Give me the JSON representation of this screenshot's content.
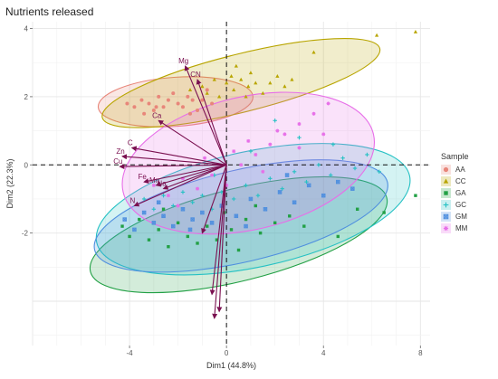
{
  "chart_data": {
    "type": "scatter",
    "title": "Nutrients released",
    "xlabel": "Dim1 (44.8%)",
    "ylabel": "Dim2 (22.3%)",
    "xlim": [
      -8,
      8.4
    ],
    "ylim": [
      -5.3,
      4.2
    ],
    "x_ticks": [
      -4,
      0,
      4,
      8
    ],
    "y_ticks": [
      -2,
      0,
      2,
      4
    ],
    "x_tick_labels": [
      "-4",
      "0",
      "4",
      "8"
    ],
    "y_tick_labels": [
      "-2",
      "0",
      "2",
      "4"
    ],
    "grid": true,
    "legend_position": "right",
    "legend_title": "Sample",
    "series": [
      {
        "name": "AA",
        "color": "#e8867a",
        "shape": "circle",
        "points": [
          [
            -4.1,
            1.8
          ],
          [
            -3.8,
            1.7
          ],
          [
            -3.5,
            1.9
          ],
          [
            -3.2,
            1.8
          ],
          [
            -3.0,
            1.6
          ],
          [
            -2.8,
            2.0
          ],
          [
            -2.6,
            1.7
          ],
          [
            -2.4,
            1.9
          ],
          [
            -2.2,
            2.1
          ],
          [
            -2.0,
            1.8
          ],
          [
            -1.8,
            1.7
          ],
          [
            -1.6,
            2.0
          ],
          [
            -1.4,
            1.9
          ],
          [
            -1.2,
            1.6
          ],
          [
            -1.0,
            1.9
          ],
          [
            -0.8,
            2.2
          ],
          [
            -0.6,
            1.8
          ],
          [
            -3.4,
            1.5
          ],
          [
            -2.9,
            1.7
          ],
          [
            -1.5,
            1.5
          ]
        ],
        "ellipse": {
          "cx": -2.1,
          "cy": 1.85,
          "rx": 3.2,
          "ry": 0.72,
          "angle": 4
        }
      },
      {
        "name": "CC",
        "color": "#b8a500",
        "shape": "triangle",
        "points": [
          [
            -1.5,
            2.2
          ],
          [
            -1.0,
            2.3
          ],
          [
            -0.5,
            2.5
          ],
          [
            0.0,
            2.4
          ],
          [
            0.3,
            2.2
          ],
          [
            0.6,
            2.5
          ],
          [
            0.9,
            2.3
          ],
          [
            1.2,
            2.4
          ],
          [
            1.5,
            2.1
          ],
          [
            1.8,
            2.4
          ],
          [
            2.1,
            2.6
          ],
          [
            2.4,
            2.3
          ],
          [
            2.7,
            2.5
          ],
          [
            -0.3,
            2.0
          ],
          [
            0.2,
            2.6
          ],
          [
            0.8,
            2.0
          ],
          [
            1.0,
            2.7
          ],
          [
            -0.8,
            2.1
          ],
          [
            3.6,
            3.3
          ],
          [
            6.2,
            3.8
          ],
          [
            7.8,
            3.9
          ],
          [
            0.4,
            2.9
          ]
        ],
        "ellipse": {
          "cx": 0.6,
          "cy": 2.4,
          "rx": 5.9,
          "ry": 0.85,
          "angle": 14
        }
      },
      {
        "name": "GA",
        "color": "#22a045",
        "shape": "square",
        "points": [
          [
            -4.3,
            -1.8
          ],
          [
            -4.0,
            -2.1
          ],
          [
            -3.6,
            -1.6
          ],
          [
            -3.2,
            -2.2
          ],
          [
            -2.8,
            -1.9
          ],
          [
            -2.4,
            -2.4
          ],
          [
            -2.0,
            -1.7
          ],
          [
            -1.6,
            -2.1
          ],
          [
            -1.2,
            -2.3
          ],
          [
            -0.8,
            -1.8
          ],
          [
            -0.4,
            -2.2
          ],
          [
            0.2,
            -1.9
          ],
          [
            0.8,
            -1.6
          ],
          [
            1.4,
            -2.0
          ],
          [
            2.0,
            -1.7
          ],
          [
            2.6,
            -1.5
          ],
          [
            3.2,
            -1.8
          ],
          [
            4.6,
            -2.1
          ],
          [
            5.4,
            -1.3
          ],
          [
            6.5,
            -1.4
          ],
          [
            7.8,
            -0.9
          ],
          [
            0.5,
            -2.5
          ],
          [
            -2.6,
            -1.3
          ],
          [
            1.2,
            -1.2
          ],
          [
            -0.1,
            -1.4
          ]
        ],
        "ellipse": {
          "cx": 0.5,
          "cy": -2.05,
          "rx": 6.3,
          "ry": 1.35,
          "angle": 14
        }
      },
      {
        "name": "GC",
        "color": "#26c1c4",
        "shape": "plus",
        "points": [
          [
            -3.4,
            -1.0
          ],
          [
            -3.0,
            -1.3
          ],
          [
            -2.6,
            -0.9
          ],
          [
            -2.2,
            -1.2
          ],
          [
            -1.8,
            -0.8
          ],
          [
            -1.4,
            -1.1
          ],
          [
            -1.0,
            -0.9
          ],
          [
            -0.6,
            -1.3
          ],
          [
            -0.2,
            -0.8
          ],
          [
            0.3,
            -1.0
          ],
          [
            0.8,
            -0.6
          ],
          [
            1.3,
            -0.9
          ],
          [
            1.8,
            -0.4
          ],
          [
            2.3,
            -0.7
          ],
          [
            2.8,
            -0.2
          ],
          [
            3.3,
            -0.5
          ],
          [
            3.8,
            0.0
          ],
          [
            4.3,
            -0.3
          ],
          [
            4.8,
            0.2
          ],
          [
            5.3,
            -0.1
          ],
          [
            5.8,
            0.3
          ],
          [
            6.3,
            -0.2
          ],
          [
            2.0,
            1.3
          ],
          [
            3.0,
            0.8
          ],
          [
            1.0,
            0.4
          ],
          [
            4.4,
            0.6
          ],
          [
            -0.5,
            -0.3
          ]
        ],
        "ellipse": {
          "cx": 1.1,
          "cy": -1.3,
          "rx": 6.6,
          "ry": 1.7,
          "angle": 12
        }
      },
      {
        "name": "GM",
        "color": "#4f8fdf",
        "shape": "boxx",
        "points": [
          [
            -4.2,
            -1.6
          ],
          [
            -3.8,
            -1.9
          ],
          [
            -3.4,
            -1.4
          ],
          [
            -3.0,
            -1.7
          ],
          [
            -2.6,
            -1.5
          ],
          [
            -2.2,
            -1.8
          ],
          [
            -1.8,
            -1.3
          ],
          [
            -1.4,
            -1.6
          ],
          [
            -1.0,
            -1.4
          ],
          [
            -0.6,
            -1.7
          ],
          [
            -0.2,
            -1.2
          ],
          [
            0.4,
            -1.5
          ],
          [
            1.0,
            -1.0
          ],
          [
            1.6,
            -1.3
          ],
          [
            2.2,
            -0.8
          ],
          [
            2.8,
            -1.1
          ],
          [
            3.4,
            -0.6
          ],
          [
            4.0,
            -0.9
          ],
          [
            4.6,
            -0.5
          ],
          [
            5.2,
            -0.7
          ],
          [
            -2.8,
            -1.1
          ],
          [
            0.8,
            -1.8
          ],
          [
            2.5,
            -0.3
          ],
          [
            -1.5,
            -1.9
          ]
        ],
        "ellipse": {
          "cx": 0.6,
          "cy": -1.5,
          "rx": 6.2,
          "ry": 1.35,
          "angle": 13
        }
      },
      {
        "name": "MM",
        "color": "#e76ee8",
        "shape": "star",
        "points": [
          [
            -3.0,
            -0.6
          ],
          [
            -2.4,
            -0.9
          ],
          [
            -1.8,
            -0.4
          ],
          [
            -1.2,
            -0.7
          ],
          [
            -0.6,
            -0.3
          ],
          [
            0.0,
            -0.6
          ],
          [
            0.6,
            0.0
          ],
          [
            1.2,
            0.3
          ],
          [
            1.8,
            0.6
          ],
          [
            2.4,
            0.9
          ],
          [
            3.0,
            1.2
          ],
          [
            3.6,
            1.5
          ],
          [
            4.2,
            1.8
          ],
          [
            2.1,
            1.0
          ],
          [
            0.9,
            0.7
          ],
          [
            -0.9,
            0.2
          ],
          [
            1.5,
            -0.2
          ],
          [
            4.0,
            0.9
          ],
          [
            -2.0,
            -1.2
          ],
          [
            0.3,
            0.4
          ],
          [
            3.0,
            0.5
          ]
        ],
        "ellipse": {
          "cx": 0.9,
          "cy": 0.05,
          "rx": 5.3,
          "ry": 1.95,
          "angle": 13
        }
      }
    ],
    "loadings": [
      {
        "label": "Mg",
        "x": -1.7,
        "y": 2.9
      },
      {
        "label": "CN",
        "x": -1.2,
        "y": 2.5
      },
      {
        "label": "Ca",
        "x": -2.8,
        "y": 1.3
      },
      {
        "label": "C",
        "x": -3.9,
        "y": 0.5
      },
      {
        "label": "Zn",
        "x": -4.3,
        "y": 0.25
      },
      {
        "label": "Cu",
        "x": -4.4,
        "y": -0.05
      },
      {
        "label": "Fe",
        "x": -3.4,
        "y": -0.5
      },
      {
        "label": "Mn",
        "x": -2.9,
        "y": -0.6
      },
      {
        "label": "Na",
        "x": -2.6,
        "y": -0.7
      },
      {
        "label": "N",
        "x": -3.8,
        "y": -1.2
      },
      {
        "label": "",
        "x": -0.6,
        "y": -3.8
      },
      {
        "label": "",
        "x": -0.5,
        "y": -4.5
      },
      {
        "label": "",
        "x": -0.3,
        "y": -4.3
      },
      {
        "label": "",
        "x": -1.0,
        "y": -2.0
      }
    ],
    "loading_color": "#7a1050"
  }
}
